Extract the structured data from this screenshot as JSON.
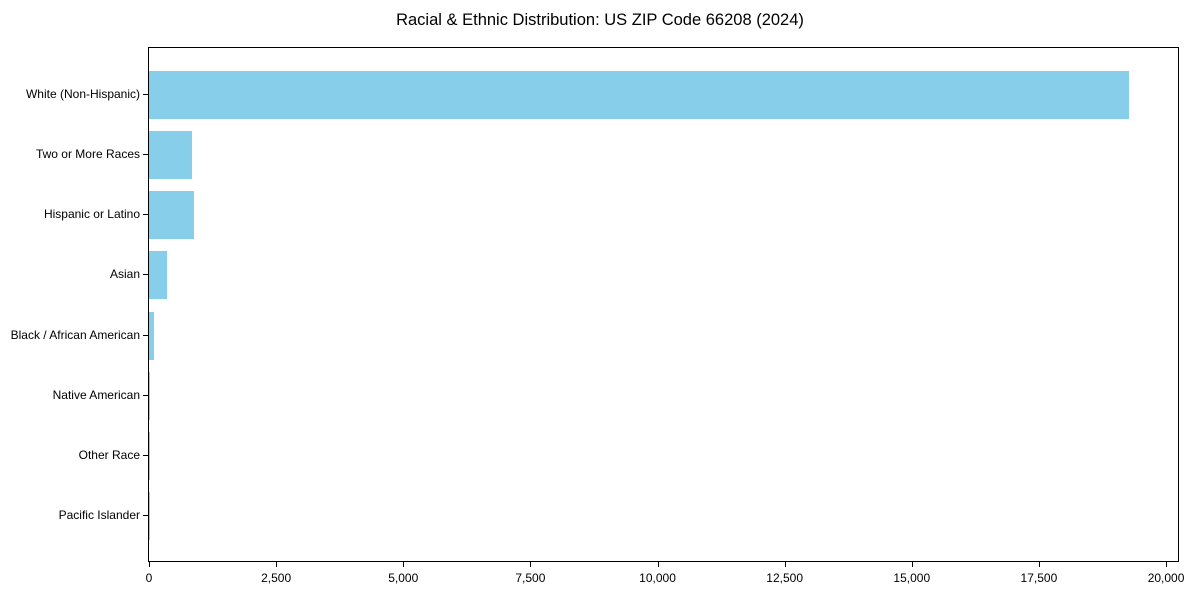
{
  "chart_data": {
    "type": "bar",
    "orientation": "horizontal",
    "title": "Racial & Ethnic Distribution: US ZIP Code 66208 (2024)",
    "categories": [
      "White (Non-Hispanic)",
      "Two or More Races",
      "Hispanic or Latino",
      "Asian",
      "Black / African American",
      "Native American",
      "Other Race",
      "Pacific Islander"
    ],
    "values": [
      19270,
      840,
      880,
      355,
      100,
      25,
      15,
      5
    ],
    "xlabel": "",
    "ylabel": "",
    "xlim": [
      0,
      20235
    ],
    "x_ticks": [
      0,
      2500,
      5000,
      7500,
      10000,
      12500,
      15000,
      17500,
      20000
    ],
    "x_tick_labels": [
      "0",
      "2,500",
      "5,000",
      "7,500",
      "10,000",
      "12,500",
      "15,000",
      "17,500",
      "20,000"
    ],
    "bar_color": "#87CEEB",
    "spine_color": "#000000",
    "text_color": "#000000",
    "background_color": "#ffffff",
    "grid": false,
    "legend": null
  }
}
